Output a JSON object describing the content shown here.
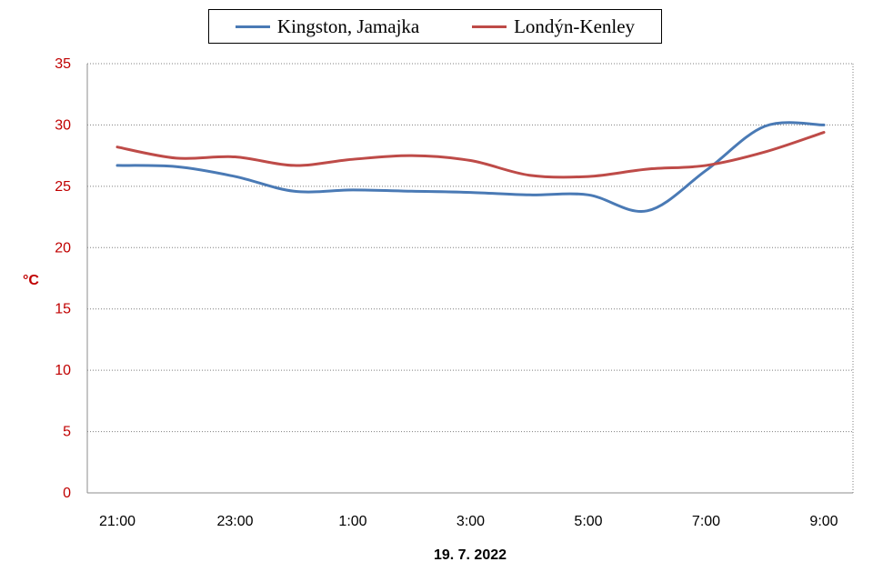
{
  "chart_data": {
    "type": "line",
    "xlabel": "19. 7. 2022",
    "ylabel": "°C",
    "ylim": [
      0,
      35
    ],
    "yticks": [
      0,
      5,
      10,
      15,
      20,
      25,
      30,
      35
    ],
    "categories": [
      "21:00",
      "22:00",
      "23:00",
      "0:00",
      "1:00",
      "2:00",
      "3:00",
      "4:00",
      "5:00",
      "6:00",
      "7:00",
      "8:00",
      "9:00"
    ],
    "xtick_labels": [
      "21:00",
      "",
      "23:00",
      "",
      "1:00",
      "",
      "3:00",
      "",
      "5:00",
      "",
      "7:00",
      "",
      "9:00"
    ],
    "grid": true,
    "legend_position": "top-center",
    "series": [
      {
        "name": "Kingston, Jamajka",
        "color": "#4a7ab5",
        "values": [
          26.7,
          26.6,
          25.8,
          24.6,
          24.7,
          24.6,
          24.5,
          24.3,
          24.3,
          23.0,
          26.3,
          29.9,
          30.0
        ]
      },
      {
        "name": "Londýn-Kenley",
        "color": "#be4b48",
        "values": [
          28.2,
          27.3,
          27.4,
          26.7,
          27.2,
          27.5,
          27.1,
          25.9,
          25.8,
          26.4,
          26.7,
          27.8,
          29.4
        ]
      }
    ]
  }
}
